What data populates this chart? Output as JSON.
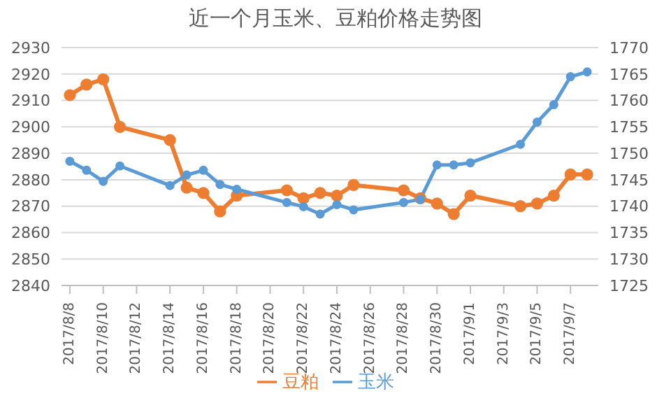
{
  "chart_data": {
    "type": "line",
    "title": "近一个月玉米、豆粕价格走势图",
    "x": [
      "2017-08-08",
      "2017-08-09",
      "2017-08-10",
      "2017-08-11",
      "2017-08-14",
      "2017-08-15",
      "2017-08-16",
      "2017-08-17",
      "2017-08-18",
      "2017-08-21",
      "2017-08-22",
      "2017-08-23",
      "2017-08-24",
      "2017-08-25",
      "2017-08-28",
      "2017-08-29",
      "2017-08-30",
      "2017-08-31",
      "2017-09-01",
      "2017-09-04",
      "2017-09-05",
      "2017-09-06",
      "2017-09-07",
      "2017-09-08"
    ],
    "series": [
      {
        "name": "豆粕",
        "color": "#ed7d31",
        "values": [
          2912,
          2916,
          2918,
          2900,
          2895,
          2877,
          2875,
          2868,
          2874,
          2876,
          2873,
          2875,
          2874,
          2878,
          2876,
          2873,
          2871,
          2867,
          2874,
          2870,
          2871,
          2874,
          2882,
          2882
        ]
      },
      {
        "name": "玉米",
        "color": "#5b9bd5",
        "axis": "y2",
        "values": [
          1748.5,
          1746.8,
          1744.7,
          1747.6,
          1743.9,
          1745.9,
          1746.8,
          1744.1,
          1743.2,
          1740.7,
          1739.9,
          1738.5,
          1740.3,
          1739.3,
          1740.7,
          1741.3,
          1747.8,
          1747.8,
          1748.2,
          1751.7,
          1755.9,
          1759.2,
          1764.5,
          1765.4
        ]
      }
    ],
    "xlim": [
      "2017-08-07T12:00",
      "2017-09-08T16:00"
    ],
    "xticks": [
      {
        "value": "2017-08-08",
        "label": "2017/8/8"
      },
      {
        "value": "2017-08-10",
        "label": "2017/8/10"
      },
      {
        "value": "2017-08-12",
        "label": "2017/8/12"
      },
      {
        "value": "2017-08-14",
        "label": "2017/8/14"
      },
      {
        "value": "2017-08-16",
        "label": "2017/8/16"
      },
      {
        "value": "2017-08-18",
        "label": "2017/8/18"
      },
      {
        "value": "2017-08-20",
        "label": "2017/8/20"
      },
      {
        "value": "2017-08-22",
        "label": "2017/8/22"
      },
      {
        "value": "2017-08-24",
        "label": "2017/8/24"
      },
      {
        "value": "2017-08-26",
        "label": "2017/8/26"
      },
      {
        "value": "2017-08-28",
        "label": "2017/8/28"
      },
      {
        "value": "2017-08-30",
        "label": "2017/8/30"
      },
      {
        "value": "2017-09-01",
        "label": "2017/9/1"
      },
      {
        "value": "2017-09-03",
        "label": "2017/9/3"
      },
      {
        "value": "2017-09-05",
        "label": "2017/9/5"
      },
      {
        "value": "2017-09-07",
        "label": "2017/9/7"
      }
    ],
    "ylim": [
      2840,
      2930
    ],
    "yticks": [
      2840,
      2850,
      2860,
      2870,
      2880,
      2890,
      2900,
      2910,
      2920,
      2930
    ],
    "y2lim": [
      1725,
      1770
    ],
    "y2ticks": [
      1725,
      1730,
      1735,
      1740,
      1745,
      1750,
      1755,
      1760,
      1765,
      1770
    ],
    "grid": "y",
    "legend": "bottom",
    "marker": "circle",
    "line_style": "solid"
  }
}
